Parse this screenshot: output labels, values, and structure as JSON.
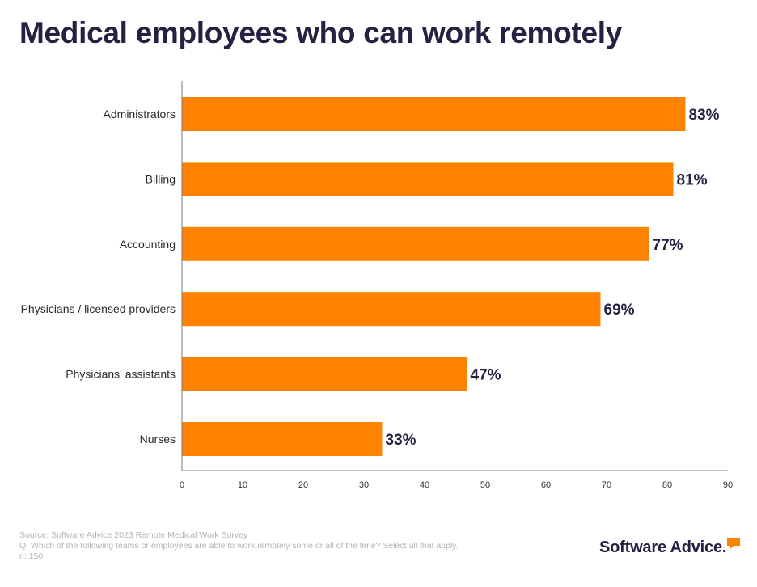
{
  "chart_data": {
    "type": "bar",
    "orientation": "horizontal",
    "title": "Medical employees who can work remotely",
    "categories": [
      "Administrators",
      "Billing",
      "Accounting",
      "Physicians / licensed providers",
      "Physicians' assistants",
      "Nurses"
    ],
    "values": [
      83,
      81,
      77,
      69,
      47,
      33
    ],
    "value_labels": [
      "83%",
      "81%",
      "77%",
      "69%",
      "47%",
      "33%"
    ],
    "xlim": [
      0,
      90
    ],
    "x_ticks": [
      0,
      10,
      20,
      30,
      40,
      50,
      60,
      70,
      80,
      90
    ],
    "bar_color": "#ff8200",
    "grid": false
  },
  "footer": {
    "source": "Source: Software Advice 2023 Remote Medical Work Survey",
    "question": "Q: Which of the following teams or employees are able to work remotely some or all of the time? Select all that apply.",
    "sample": "n: 150"
  },
  "brand": {
    "name": "Software Advice.",
    "accent_color": "#ff8200"
  }
}
